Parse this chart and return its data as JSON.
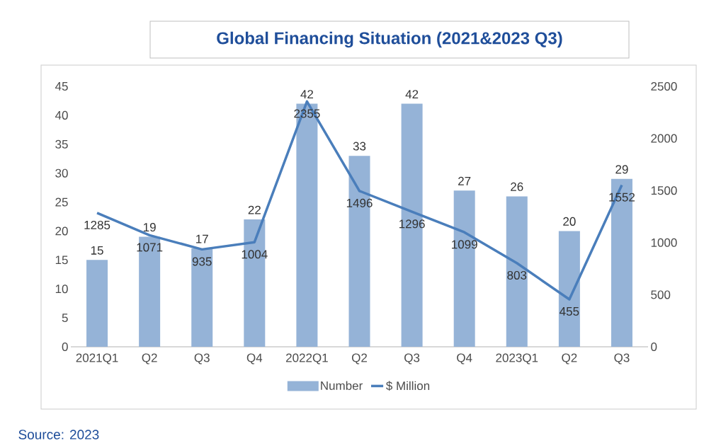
{
  "chart_data": {
    "type": "bar",
    "title": "Global Financing Situation (2021&2023 Q3)",
    "categories": [
      "2021Q1",
      "Q2",
      "Q3",
      "Q4",
      "2022Q1",
      "Q2",
      "Q3",
      "Q4",
      "2023Q1",
      "Q2",
      "Q3"
    ],
    "series": [
      {
        "name": "Number",
        "color": "#95b3d7",
        "values": [
          15,
          19,
          17,
          22,
          42,
          33,
          42,
          27,
          26,
          20,
          29
        ]
      },
      {
        "name": "$ Million",
        "type": "line",
        "axis": "y2",
        "color": "#4a7ebb",
        "values": [
          1285,
          1071,
          935,
          1004,
          2355,
          1496,
          1296,
          1099,
          803,
          455,
          1552
        ]
      }
    ],
    "ylim": [
      0,
      45
    ],
    "yticks": [
      0,
      5,
      10,
      15,
      20,
      25,
      30,
      35,
      40,
      45
    ],
    "y2lim": [
      0,
      2500
    ],
    "y2ticks": [
      0,
      500,
      1000,
      1500,
      2000,
      2500
    ],
    "data_labels": true,
    "legend": "bottom",
    "annotations": [
      "Source: 2023"
    ]
  }
}
